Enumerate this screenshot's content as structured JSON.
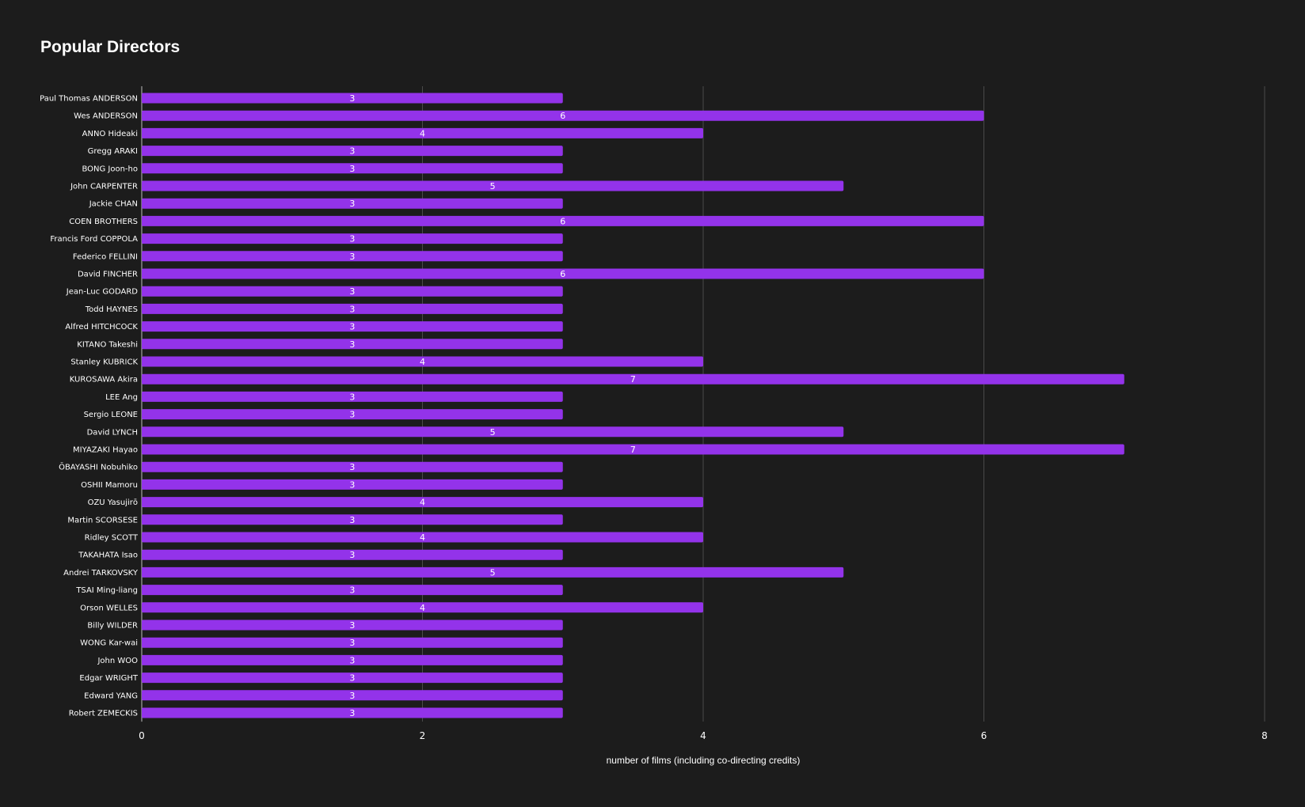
{
  "chart_data": {
    "type": "bar",
    "orientation": "horizontal",
    "title": "Popular Directors",
    "xlabel": "number of films (including co-directing credits)",
    "ylabel": "",
    "xlim": [
      0,
      8
    ],
    "x_ticks": [
      "0",
      "2",
      "4",
      "6",
      "8"
    ],
    "grid": true,
    "bar_color": "#9333ea",
    "background": "#1c1c1c",
    "categories": [
      "Paul Thomas ANDERSON",
      "Wes ANDERSON",
      "ANNO Hideaki",
      "Gregg ARAKI",
      "BONG Joon-ho",
      "John CARPENTER",
      "Jackie CHAN",
      "COEN BROTHERS",
      "Francis Ford COPPOLA",
      "Federico FELLINI",
      "David FINCHER",
      "Jean-Luc GODARD",
      "Todd HAYNES",
      "Alfred HITCHCOCK",
      "KITANO Takeshi",
      "Stanley KUBRICK",
      "KUROSAWA Akira",
      "LEE Ang",
      "Sergio LEONE",
      "David LYNCH",
      "MIYAZAKI Hayao",
      "ŌBAYASHI Nobuhiko",
      "OSHII Mamoru",
      "OZU Yasujirō",
      "Martin SCORSESE",
      "Ridley SCOTT",
      "TAKAHATA Isao",
      "Andrei TARKOVSKY",
      "TSAI Ming-liang",
      "Orson WELLES",
      "Billy WILDER",
      "WONG Kar-wai",
      "John WOO",
      "Edgar WRIGHT",
      "Edward YANG",
      "Robert ZEMECKIS"
    ],
    "values": [
      3,
      6,
      4,
      3,
      3,
      5,
      3,
      6,
      3,
      3,
      6,
      3,
      3,
      3,
      3,
      4,
      7,
      3,
      3,
      5,
      7,
      3,
      3,
      4,
      3,
      4,
      3,
      5,
      3,
      4,
      3,
      3,
      3,
      3,
      3,
      3
    ]
  }
}
